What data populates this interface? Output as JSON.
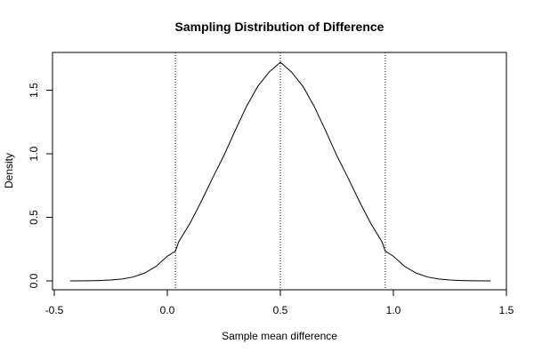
{
  "chart_data": {
    "type": "line",
    "title": "Sampling Distribution of Difference",
    "xlabel": "Sample mean difference",
    "ylabel": "Density",
    "xlim": [
      -0.5,
      1.5
    ],
    "ylim": [
      0,
      1.75
    ],
    "grid": false,
    "xticks": [
      -0.5,
      0.0,
      0.5,
      1.0,
      1.5
    ],
    "xtick_labels": [
      "-0.5",
      "0.0",
      "0.5",
      "1.0",
      "1.5"
    ],
    "yticks": [
      0.0,
      0.5,
      1.0,
      1.5
    ],
    "ytick_labels": [
      "0.0",
      "0.5",
      "1.0",
      "1.5"
    ],
    "x": [
      -0.43,
      -0.35,
      -0.3,
      -0.25,
      -0.2,
      -0.15,
      -0.1,
      -0.05,
      0.0,
      0.036,
      0.05,
      0.1,
      0.15,
      0.2,
      0.25,
      0.3,
      0.35,
      0.4,
      0.45,
      0.5,
      0.55,
      0.6,
      0.65,
      0.7,
      0.75,
      0.8,
      0.85,
      0.9,
      0.95,
      0.964,
      1.0,
      1.05,
      1.1,
      1.15,
      1.2,
      1.25,
      1.3,
      1.35,
      1.43
    ],
    "y": [
      0.0002,
      0.001,
      0.003,
      0.007,
      0.015,
      0.031,
      0.062,
      0.114,
      0.194,
      0.234,
      0.306,
      0.452,
      0.624,
      0.808,
      0.985,
      1.182,
      1.372,
      1.53,
      1.642,
      1.72,
      1.642,
      1.53,
      1.372,
      1.182,
      0.985,
      0.808,
      0.624,
      0.452,
      0.306,
      0.234,
      0.194,
      0.114,
      0.062,
      0.031,
      0.015,
      0.007,
      0.003,
      0.001,
      0.0002
    ],
    "reference_lines": [
      {
        "x": 0.036,
        "style": "dotted"
      },
      {
        "x": 0.5,
        "style": "dotted"
      },
      {
        "x": 0.964,
        "style": "dotted"
      }
    ],
    "colors": {
      "curve": "#000000",
      "reference": "#000000",
      "axes": "#000000",
      "background": "#ffffff"
    }
  }
}
